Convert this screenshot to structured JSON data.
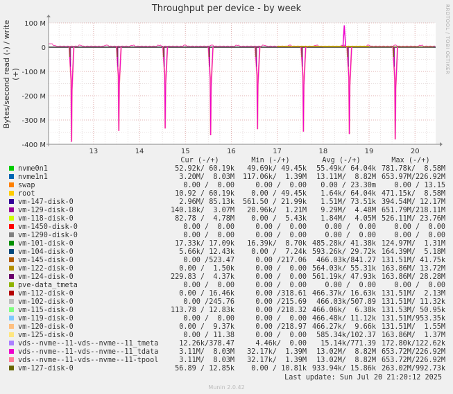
{
  "title": "Throughput per device - by week",
  "side_label": "RRDTOOL / TOBI OETIKER",
  "footer": "Munin 2.0.42",
  "last_update": "Last update:  Sun Jul 20 21:20:12 2025",
  "legend_headers": [
    "Cur (-/+)",
    "Min (-/+)",
    "Avg (-/+)",
    "Max (-/+)"
  ],
  "chart_data": {
    "type": "line",
    "title": "Throughput per device - by week",
    "ylabel": "Bytes/second read (-) / write (+)",
    "xlabel": "",
    "ylim": [
      -400,
      100
    ],
    "yunit": "M",
    "yticks": [
      -400,
      -300,
      -200,
      -100,
      0,
      100
    ],
    "ytick_labels": [
      "-400 M",
      "-300 M",
      "-200 M",
      "-100 M",
      "0",
      "100 M"
    ],
    "xlim": [
      12.02,
      20.45
    ],
    "xticks": [
      13,
      14,
      15,
      16,
      17,
      18,
      19,
      20
    ],
    "xtick_labels": [
      "13",
      "14",
      "15",
      "16",
      "17",
      "18",
      "19",
      "20"
    ],
    "grid": true,
    "read_dips": [
      {
        "day": 12.52,
        "min": -390
      },
      {
        "day": 13.55,
        "min": -345
      },
      {
        "day": 14.56,
        "min": -335
      },
      {
        "day": 15.55,
        "min": -363
      },
      {
        "day": 16.57,
        "min": -338
      },
      {
        "day": 17.57,
        "min": -348
      },
      {
        "day": 18.57,
        "min": -358
      },
      {
        "day": 19.57,
        "min": -380
      }
    ],
    "write_spike": {
      "day": 18.46,
      "max": 90
    },
    "series": [
      {
        "name": "nvme0n1",
        "color": "#00cc00",
        "cur": "52.92k/ 60.19k",
        "min": "49.69k/ 49.45k",
        "avg": "55.49k/ 64.04k",
        "max": "781.78k/  8.58M"
      },
      {
        "name": "nvme1n1",
        "color": "#0066b3",
        "cur": "3.20M/  8.03M",
        "min": "117.06k/  1.39M",
        "avg": "13.11M/  8.82M",
        "max": "653.97M/226.92M"
      },
      {
        "name": "swap",
        "color": "#ff8000",
        "cur": "0.00 /  0.00",
        "min": "0.00 /  0.00",
        "avg": "0.00 / 23.30m",
        "max": "0.00 / 13.15"
      },
      {
        "name": "root",
        "color": "#ffcc00",
        "cur": "10.92 / 60.19k",
        "min": "0.00 / 49.45k",
        "avg": "1.64k/ 64.04k",
        "max": "471.15k/  8.58M"
      },
      {
        "name": "vm-147-disk-0",
        "color": "#330099",
        "cur": "2.96M/ 85.13k",
        "min": "561.50 / 21.99k",
        "avg": "1.51M/ 73.51k",
        "max": "394.54M/ 12.17M"
      },
      {
        "name": "vm-129-disk-0",
        "color": "#990099",
        "cur": "140.18k/  3.07M",
        "min": "20.96k/  1.21M",
        "avg": "9.29M/  4.48M",
        "max": "651.79M/218.11M"
      },
      {
        "name": "vm-118-disk-0",
        "color": "#ccff00",
        "cur": "82.78 /  4.78M",
        "min": "0.00 /  5.43k",
        "avg": "1.84M/  4.05M",
        "max": "526.11M/ 23.76M"
      },
      {
        "name": "vm-1450-disk-0",
        "color": "#ff0000",
        "cur": "0.00 /  0.00",
        "min": "0.00 /  0.00",
        "avg": "0.00 /  0.00",
        "max": "0.00 /  0.00"
      },
      {
        "name": "vm-1290-disk-0",
        "color": "#808080",
        "cur": "0.00 /  0.00",
        "min": "0.00 /  0.00",
        "avg": "0.00 /  0.00",
        "max": "0.00 /  0.00"
      },
      {
        "name": "vm-101-disk-0",
        "color": "#008f00",
        "cur": "17.33k/ 17.09k",
        "min": "16.39k/  8.70k",
        "avg": "485.28k/ 41.38k",
        "max": "124.97M/  1.31M"
      },
      {
        "name": "vm-104-disk-0",
        "color": "#00487d",
        "cur": "5.66k/ 12.43k",
        "min": "0.00 /  7.24k",
        "avg": "593.26k/ 29.72k",
        "max": "164.39M/  5.18M"
      },
      {
        "name": "vm-145-disk-0",
        "color": "#b35a00",
        "cur": "0.00 /523.47",
        "min": "0.00 /217.06",
        "avg": "466.03k/841.27",
        "max": "131.51M/ 41.75k"
      },
      {
        "name": "vm-122-disk-0",
        "color": "#b38f00",
        "cur": "0.00 /  1.50k",
        "min": "0.00 /  0.00",
        "avg": "564.03k/ 55.31k",
        "max": "163.86M/ 13.72M"
      },
      {
        "name": "vm-124-disk-0",
        "color": "#6b006b",
        "cur": "229.83 /  4.37k",
        "min": "0.00 /  0.00",
        "avg": "561.19k/ 47.93k",
        "max": "163.86M/ 28.28M"
      },
      {
        "name": "pve-data_tmeta",
        "color": "#8fb300",
        "cur": "0.00 /  0.00",
        "min": "0.00 /  0.00",
        "avg": "0.00 /  0.00",
        "max": "0.00 /  0.00"
      },
      {
        "name": "vm-112-disk-0",
        "color": "#b30000",
        "cur": "0.00 / 16.46k",
        "min": "0.00 /318.61",
        "avg": "466.37k/ 16.63k",
        "max": "131.51M/  2.13M"
      },
      {
        "name": "vm-102-disk-0",
        "color": "#bebebe",
        "cur": "0.00 /245.76",
        "min": "0.00 /215.69",
        "avg": "466.03k/507.89",
        "max": "131.51M/ 11.32k"
      },
      {
        "name": "vm-115-disk-0",
        "color": "#80ff80",
        "cur": "113.78 / 12.83k",
        "min": "0.00 /218.32",
        "avg": "466.06k/  6.38k",
        "max": "131.53M/ 50.95k"
      },
      {
        "name": "vm-119-disk-0",
        "color": "#80c9ff",
        "cur": "0.00 /  0.00",
        "min": "0.00 /  0.00",
        "avg": "466.48k/ 11.12k",
        "max": "131.51M/953.35k"
      },
      {
        "name": "vm-120-disk-0",
        "color": "#ffc080",
        "cur": "0.00 /  9.37k",
        "min": "0.00 /218.97",
        "avg": "466.27k/  9.66k",
        "max": "131.51M/  1.55M"
      },
      {
        "name": "vm-125-disk-0",
        "color": "#ffe680",
        "cur": "0.00 / 11.38",
        "min": "0.00 /  0.00",
        "avg": "585.34k/102.37",
        "max": "163.86M/  1.37M"
      },
      {
        "name": "vds--nvme--11-vds--nvme--11_tmeta",
        "color": "#aa80ff",
        "cur": "12.26k/378.47",
        "min": "4.46k/  0.00",
        "avg": "15.14k/771.39",
        "max": "172.80k/122.62k"
      },
      {
        "name": "vds--nvme--11-vds--nvme--11_tdata",
        "color": "#ee00cc",
        "cur": "3.11M/  8.03M",
        "min": "32.17k/  1.39M",
        "avg": "13.02M/  8.82M",
        "max": "653.72M/226.92M"
      },
      {
        "name": "vds--nvme--11-vds--nvme--11-tpool",
        "color": "#ff8099",
        "cur": "3.11M/  8.03M",
        "min": "32.17k/  1.39M",
        "avg": "13.02M/  8.82M",
        "max": "653.72M/226.92M"
      },
      {
        "name": "vm-127-disk-0",
        "color": "#666600",
        "cur": "56.89 / 12.85k",
        "min": "0.00 / 10.81k",
        "avg": "933.94k/ 15.86k",
        "max": "263.02M/992.73k"
      }
    ]
  }
}
